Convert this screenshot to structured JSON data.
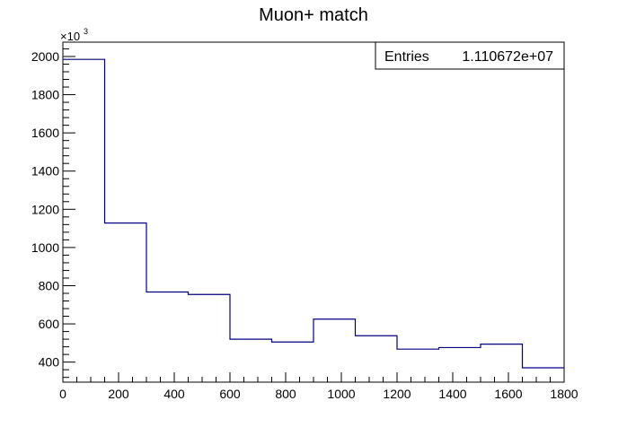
{
  "chart_data": {
    "type": "histogram",
    "title": "Muon+ match",
    "xlabel": "",
    "ylabel": "",
    "y_multiplier_label": "×10",
    "y_multiplier_exponent": "3",
    "bin_edges": [
      0,
      150,
      300,
      450,
      600,
      750,
      900,
      1050,
      1200,
      1350,
      1500,
      1650,
      1800
    ],
    "values": [
      1985,
      1128,
      767,
      754,
      520,
      505,
      625,
      538,
      468,
      476,
      494,
      370
    ],
    "xlim": [
      0,
      1800
    ],
    "ylim": [
      295,
      2075
    ],
    "x_ticks": [
      0,
      200,
      400,
      600,
      800,
      1000,
      1200,
      1400,
      1600,
      1800
    ],
    "x_tick_labels": [
      "0",
      "200",
      "400",
      "600",
      "800",
      "1000",
      "1200",
      "1400",
      "1600",
      "1800"
    ],
    "y_ticks": [
      400,
      600,
      800,
      1000,
      1200,
      1400,
      1600,
      1800,
      2000
    ],
    "y_tick_labels": [
      "400",
      "600",
      "800",
      "1000",
      "1200",
      "1400",
      "1600",
      "1800",
      "2000"
    ],
    "line_color": "#000080",
    "grid": false,
    "stats_box": {
      "label": "Entries",
      "value": "1.110672e+07",
      "placement": "top-right"
    }
  }
}
